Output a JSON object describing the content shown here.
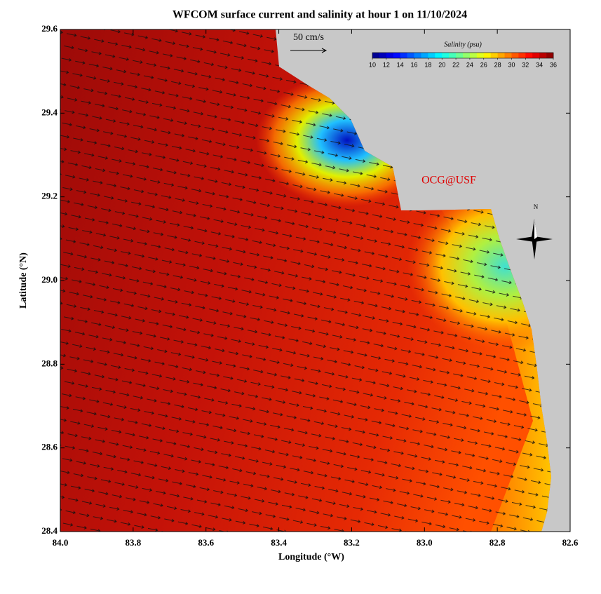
{
  "title": "WFCOM surface current and salinity at hour 1 on 11/10/2024",
  "map": {
    "x_label": "Longitude (°W)",
    "y_label": "Latitude (°N)",
    "xlim": [
      84.0,
      82.6
    ],
    "ylim": [
      28.4,
      29.6
    ],
    "xticks": [
      {
        "value": 84.0,
        "label": "84.0"
      },
      {
        "value": 83.8,
        "label": "83.8"
      },
      {
        "value": 83.6,
        "label": "83.6"
      },
      {
        "value": 83.4,
        "label": "83.4"
      },
      {
        "value": 83.2,
        "label": "83.2"
      },
      {
        "value": 83.0,
        "label": "83.0"
      },
      {
        "value": 82.8,
        "label": "82.8"
      },
      {
        "value": 82.6,
        "label": "82.6"
      }
    ],
    "yticks": [
      {
        "value": 28.4,
        "label": "28.4"
      },
      {
        "value": 28.6,
        "label": "28.6"
      },
      {
        "value": 28.8,
        "label": "28.8"
      },
      {
        "value": 29.0,
        "label": "29.0"
      },
      {
        "value": 29.2,
        "label": "29.2"
      },
      {
        "value": 29.4,
        "label": "29.4"
      },
      {
        "value": 29.6,
        "label": "29.6"
      }
    ],
    "scale_arrow_label": "50 cm/s",
    "watermark": "OCG@USF",
    "compass_label": "N"
  },
  "colorbar": {
    "title": "Salinity (psu)",
    "range": [
      10,
      36
    ],
    "ticks": [
      10,
      12,
      14,
      16,
      18,
      20,
      22,
      24,
      26,
      28,
      30,
      32,
      34,
      36
    ]
  }
}
